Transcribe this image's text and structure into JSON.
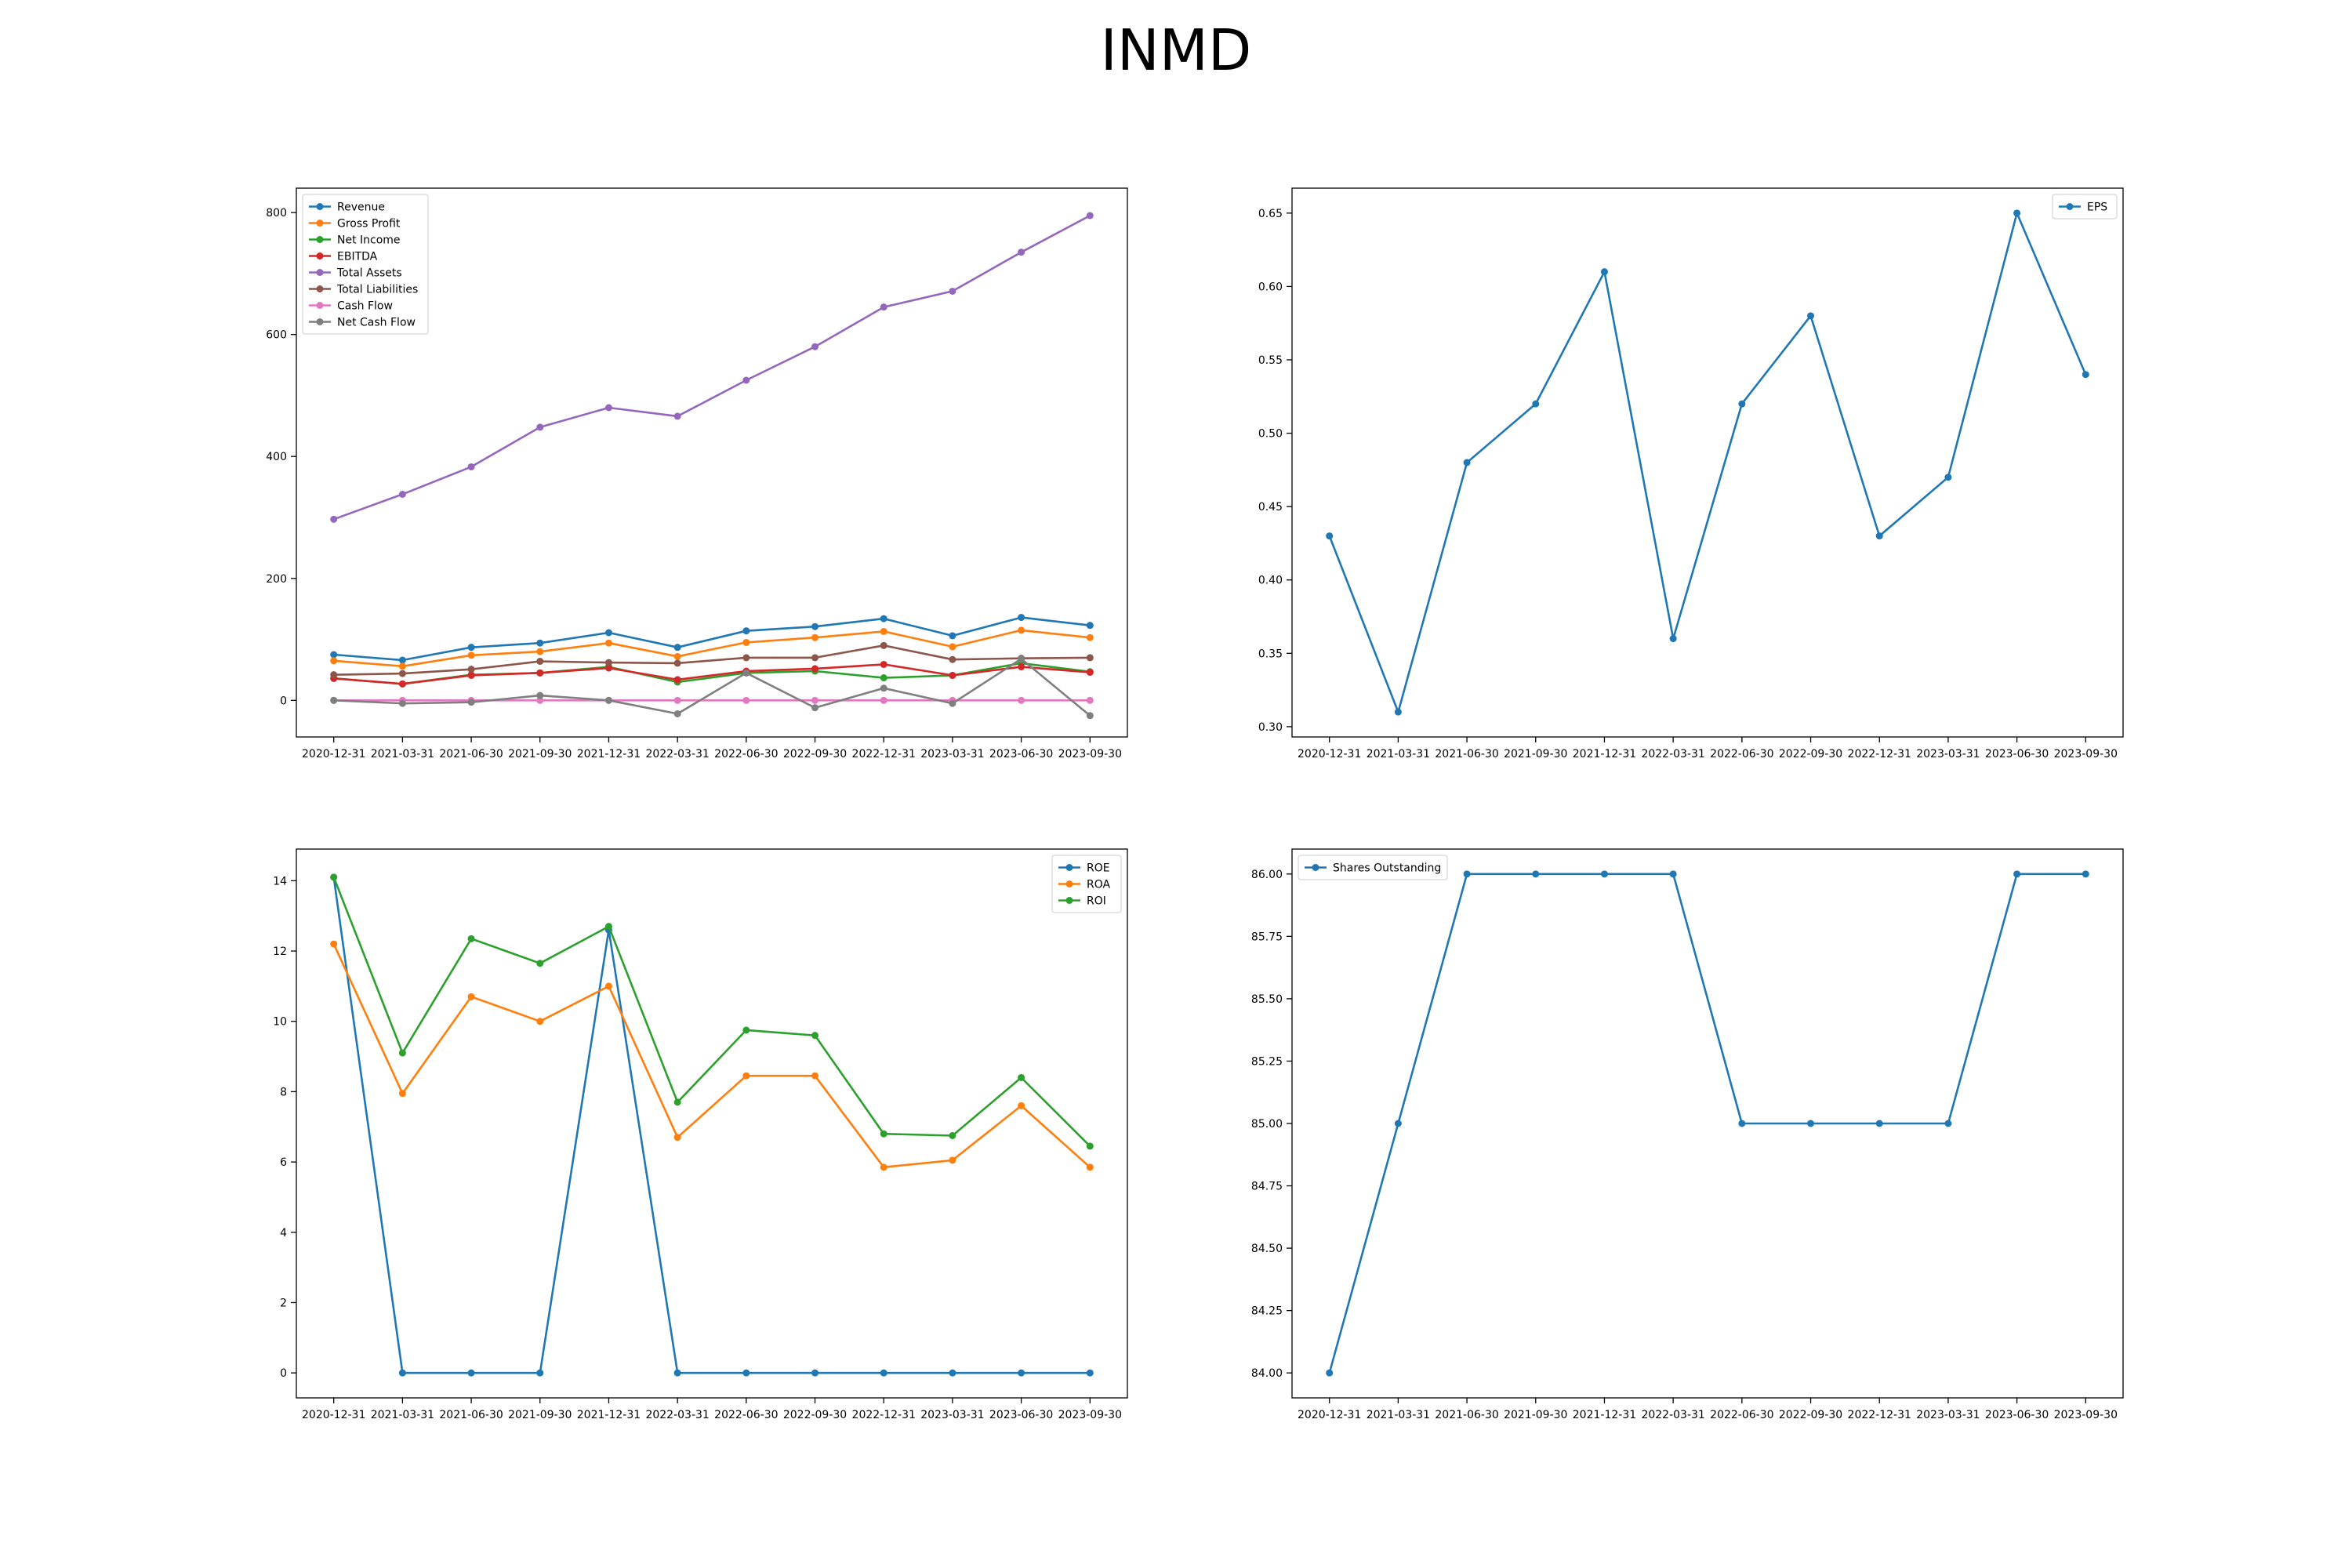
{
  "title": "INMD",
  "chart_data": [
    {
      "type": "line",
      "x": [
        "2020-12-31",
        "2021-03-31",
        "2021-06-30",
        "2021-09-30",
        "2021-12-31",
        "2022-03-31",
        "2022-06-30",
        "2022-09-30",
        "2022-12-31",
        "2023-03-31",
        "2023-06-30",
        "2023-09-30"
      ],
      "ylim": [
        -60,
        840
      ],
      "yticks": [
        0,
        200,
        400,
        600,
        800
      ],
      "ytick_labels": [
        "0",
        "200",
        "400",
        "600",
        "800"
      ],
      "legend_position": "upper left",
      "series": [
        {
          "name": "Revenue",
          "color": "#1f77b4",
          "values": [
            75,
            66,
            87,
            94,
            111,
            87,
            114,
            121,
            134,
            106,
            136,
            123
          ]
        },
        {
          "name": "Gross Profit",
          "color": "#ff7f0e",
          "values": [
            65,
            56,
            74,
            80,
            94,
            72,
            95,
            103,
            113,
            88,
            115,
            103
          ]
        },
        {
          "name": "Net Income",
          "color": "#2ca02c",
          "values": [
            36,
            27,
            42,
            45,
            55,
            30,
            45,
            48,
            37,
            41,
            61,
            47
          ]
        },
        {
          "name": "EBITDA",
          "color": "#d62728",
          "values": [
            36,
            27,
            41,
            45,
            53,
            34,
            48,
            52,
            59,
            41,
            55,
            46
          ]
        },
        {
          "name": "Total Assets",
          "color": "#9467bd",
          "values": [
            297,
            338,
            383,
            448,
            480,
            466,
            525,
            580,
            645,
            671,
            735,
            795
          ]
        },
        {
          "name": "Total Liabilities",
          "color": "#8c564b",
          "values": [
            42,
            44,
            51,
            64,
            62,
            61,
            70,
            70,
            90,
            67,
            69,
            70
          ]
        },
        {
          "name": "Cash Flow",
          "color": "#e377c2",
          "values": [
            0,
            0,
            0,
            0,
            0,
            0,
            0,
            0,
            0,
            0,
            0,
            0
          ]
        },
        {
          "name": "Net Cash Flow",
          "color": "#7f7f7f",
          "values": [
            0,
            -5,
            -3,
            8,
            0,
            -22,
            45,
            -12,
            20,
            -5,
            68,
            -25
          ]
        }
      ]
    },
    {
      "type": "line",
      "x": [
        "2020-12-31",
        "2021-03-31",
        "2021-06-30",
        "2021-09-30",
        "2021-12-31",
        "2022-03-31",
        "2022-06-30",
        "2022-09-30",
        "2022-12-31",
        "2023-03-31",
        "2023-06-30",
        "2023-09-30"
      ],
      "ylim": [
        0.293,
        0.667
      ],
      "yticks": [
        0.3,
        0.35,
        0.4,
        0.45,
        0.5,
        0.55,
        0.6,
        0.65
      ],
      "ytick_labels": [
        "0.30",
        "0.35",
        "0.40",
        "0.45",
        "0.50",
        "0.55",
        "0.60",
        "0.65"
      ],
      "legend_position": "upper right",
      "series": [
        {
          "name": "EPS",
          "color": "#1f77b4",
          "values": [
            0.43,
            0.31,
            0.48,
            0.52,
            0.61,
            0.36,
            0.52,
            0.58,
            0.43,
            0.47,
            0.65,
            0.54
          ]
        }
      ]
    },
    {
      "type": "line",
      "x": [
        "2020-12-31",
        "2021-03-31",
        "2021-06-30",
        "2021-09-30",
        "2021-12-31",
        "2022-03-31",
        "2022-06-30",
        "2022-09-30",
        "2022-12-31",
        "2023-03-31",
        "2023-06-30",
        "2023-09-30"
      ],
      "ylim": [
        -0.71,
        14.9
      ],
      "yticks": [
        0,
        2,
        4,
        6,
        8,
        10,
        12,
        14
      ],
      "ytick_labels": [
        "0",
        "2",
        "4",
        "6",
        "8",
        "10",
        "12",
        "14"
      ],
      "legend_position": "upper right",
      "series": [
        {
          "name": "ROE",
          "color": "#1f77b4",
          "values": [
            14.1,
            0,
            0,
            0,
            12.6,
            0,
            0,
            0,
            0,
            0,
            0,
            0
          ]
        },
        {
          "name": "ROA",
          "color": "#ff7f0e",
          "values": [
            12.2,
            7.95,
            10.7,
            10.0,
            11.0,
            6.7,
            8.45,
            8.45,
            5.85,
            6.05,
            7.6,
            5.85
          ]
        },
        {
          "name": "ROI",
          "color": "#2ca02c",
          "values": [
            14.1,
            9.1,
            12.35,
            11.65,
            12.7,
            7.7,
            9.75,
            9.6,
            6.8,
            6.75,
            8.4,
            6.45
          ]
        }
      ]
    },
    {
      "type": "line",
      "x": [
        "2020-12-31",
        "2021-03-31",
        "2021-06-30",
        "2021-09-30",
        "2021-12-31",
        "2022-03-31",
        "2022-06-30",
        "2022-09-30",
        "2022-12-31",
        "2023-03-31",
        "2023-06-30",
        "2023-09-30"
      ],
      "ylim": [
        83.9,
        86.1
      ],
      "yticks": [
        84.0,
        84.25,
        84.5,
        84.75,
        85.0,
        85.25,
        85.5,
        85.75,
        86.0
      ],
      "ytick_labels": [
        "84.00",
        "84.25",
        "84.50",
        "84.75",
        "85.00",
        "85.25",
        "85.50",
        "85.75",
        "86.00"
      ],
      "legend_position": "upper left",
      "series": [
        {
          "name": "Shares Outstanding",
          "color": "#1f77b4",
          "values": [
            84,
            85,
            86,
            86,
            86,
            86,
            85,
            85,
            85,
            85,
            86,
            86
          ]
        }
      ]
    }
  ]
}
